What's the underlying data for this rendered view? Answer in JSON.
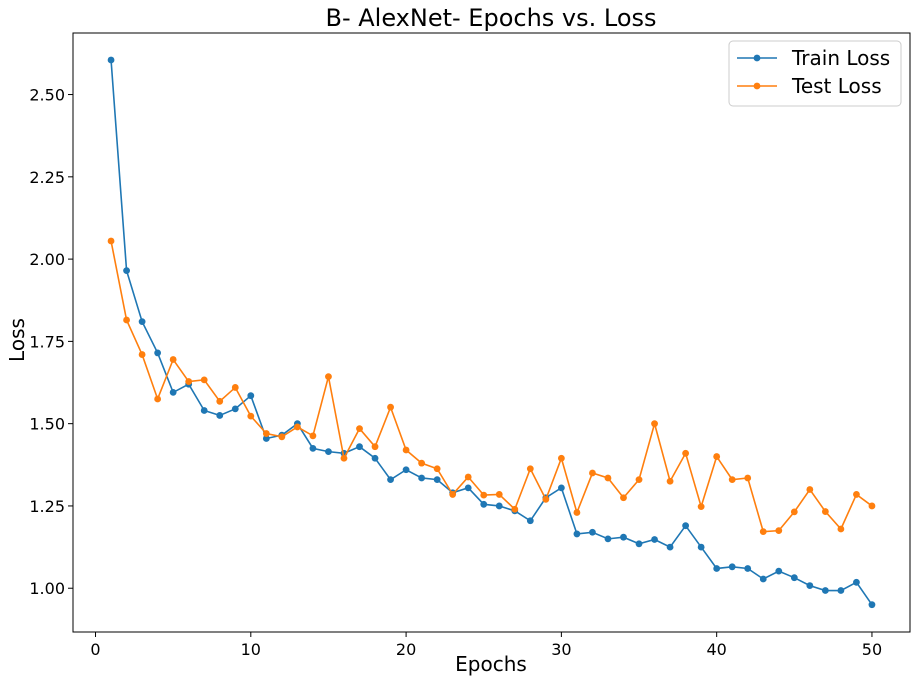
{
  "chart_data": {
    "type": "line",
    "title": "B- AlexNet- Epochs vs. Loss",
    "xlabel": "Epochs",
    "ylabel": "Loss",
    "xlim": [
      -1.45,
      52.45
    ],
    "ylim": [
      0.867,
      2.687
    ],
    "xticks": [
      0,
      10,
      20,
      30,
      40,
      50
    ],
    "yticks": [
      1.0,
      1.25,
      1.5,
      1.75,
      2.0,
      2.25,
      2.5
    ],
    "xtick_labels": [
      "0",
      "10",
      "20",
      "30",
      "40",
      "50"
    ],
    "ytick_labels": [
      "1.00",
      "1.25",
      "1.50",
      "1.75",
      "2.00",
      "2.25",
      "2.50"
    ],
    "grid": false,
    "legend_position": "top-right",
    "x": [
      1,
      2,
      3,
      4,
      5,
      6,
      7,
      8,
      9,
      10,
      11,
      12,
      13,
      14,
      15,
      16,
      17,
      18,
      19,
      20,
      21,
      22,
      23,
      24,
      25,
      26,
      27,
      28,
      29,
      30,
      31,
      32,
      33,
      34,
      35,
      36,
      37,
      38,
      39,
      40,
      41,
      42,
      43,
      44,
      45,
      46,
      47,
      48,
      49,
      50
    ],
    "series": [
      {
        "name": "Train Loss",
        "color": "#1f77b4",
        "values": [
          2.605,
          1.965,
          1.81,
          1.715,
          1.595,
          1.62,
          1.54,
          1.525,
          1.545,
          1.585,
          1.455,
          1.465,
          1.5,
          1.425,
          1.415,
          1.41,
          1.43,
          1.395,
          1.33,
          1.36,
          1.335,
          1.33,
          1.29,
          1.305,
          1.255,
          1.25,
          1.235,
          1.205,
          1.275,
          1.305,
          1.165,
          1.17,
          1.15,
          1.155,
          1.135,
          1.148,
          1.125,
          1.19,
          1.125,
          1.06,
          1.065,
          1.06,
          1.028,
          1.052,
          1.032,
          1.008,
          0.993,
          0.993,
          1.018,
          0.95
        ]
      },
      {
        "name": "Test Loss",
        "color": "#ff7f0e",
        "values": [
          2.055,
          1.815,
          1.71,
          1.575,
          1.695,
          1.628,
          1.633,
          1.568,
          1.61,
          1.523,
          1.47,
          1.46,
          1.49,
          1.463,
          1.643,
          1.395,
          1.485,
          1.43,
          1.55,
          1.42,
          1.38,
          1.363,
          1.285,
          1.338,
          1.283,
          1.285,
          1.24,
          1.363,
          1.27,
          1.395,
          1.23,
          1.35,
          1.335,
          1.275,
          1.33,
          1.5,
          1.325,
          1.41,
          1.248,
          1.4,
          1.33,
          1.335,
          1.172,
          1.175,
          1.232,
          1.3,
          1.233,
          1.18,
          1.285,
          1.25
        ]
      }
    ]
  }
}
